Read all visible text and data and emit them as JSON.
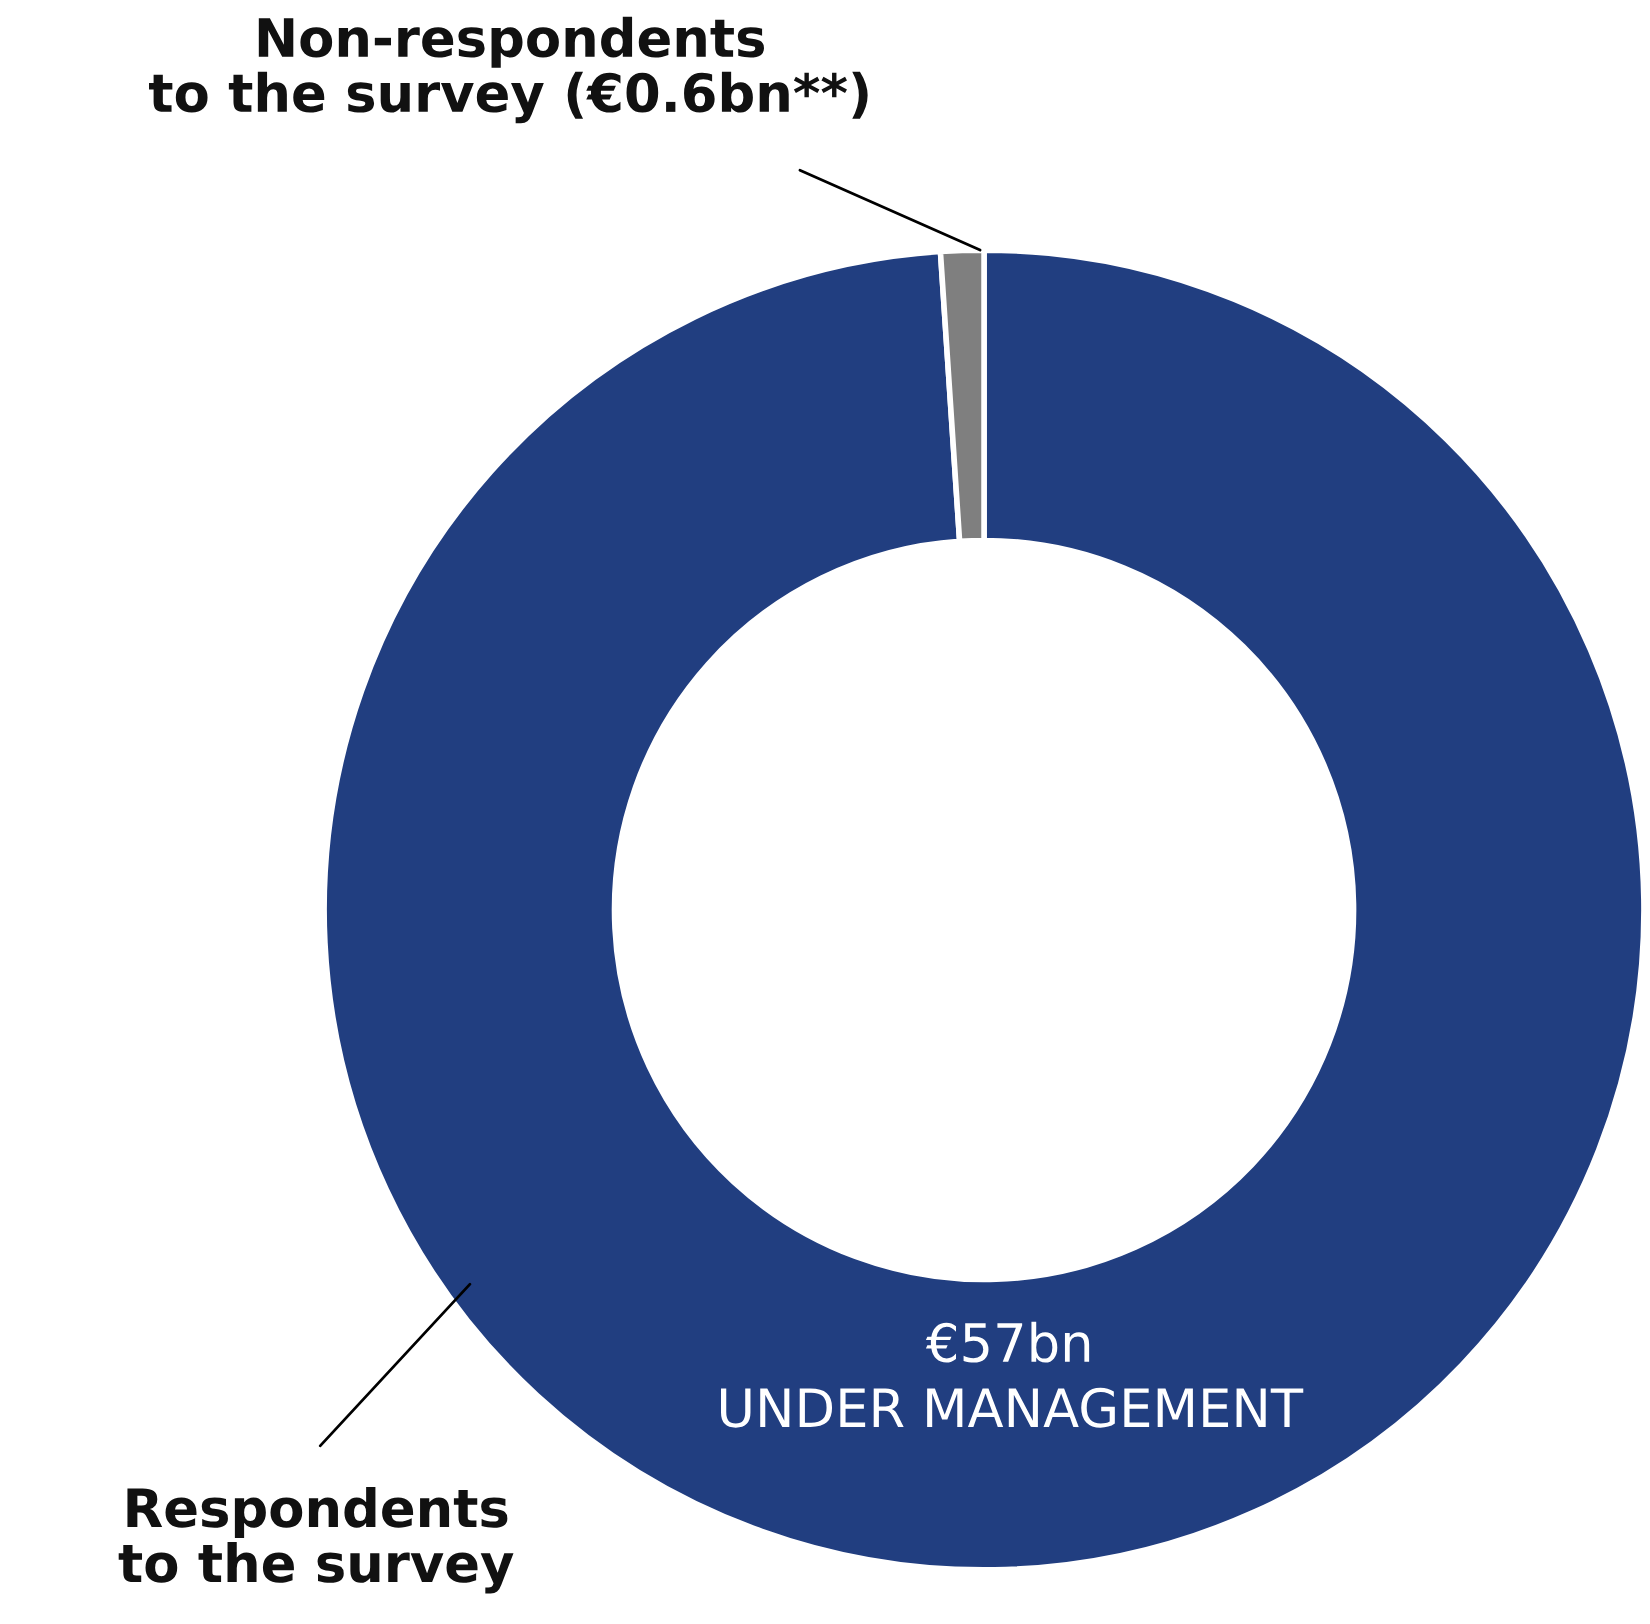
{
  "chart_data": {
    "type": "donut",
    "categories": [
      "Respondents\nto the survey",
      "Non-respondents\nto the survey (€0.6bn**)"
    ],
    "values": [
      56.4,
      0.6
    ],
    "colors": [
      "#213e80",
      "#7f7f7f"
    ],
    "annotations": [
      "€57bn\nUNDER MANAGEMENT"
    ]
  }
}
